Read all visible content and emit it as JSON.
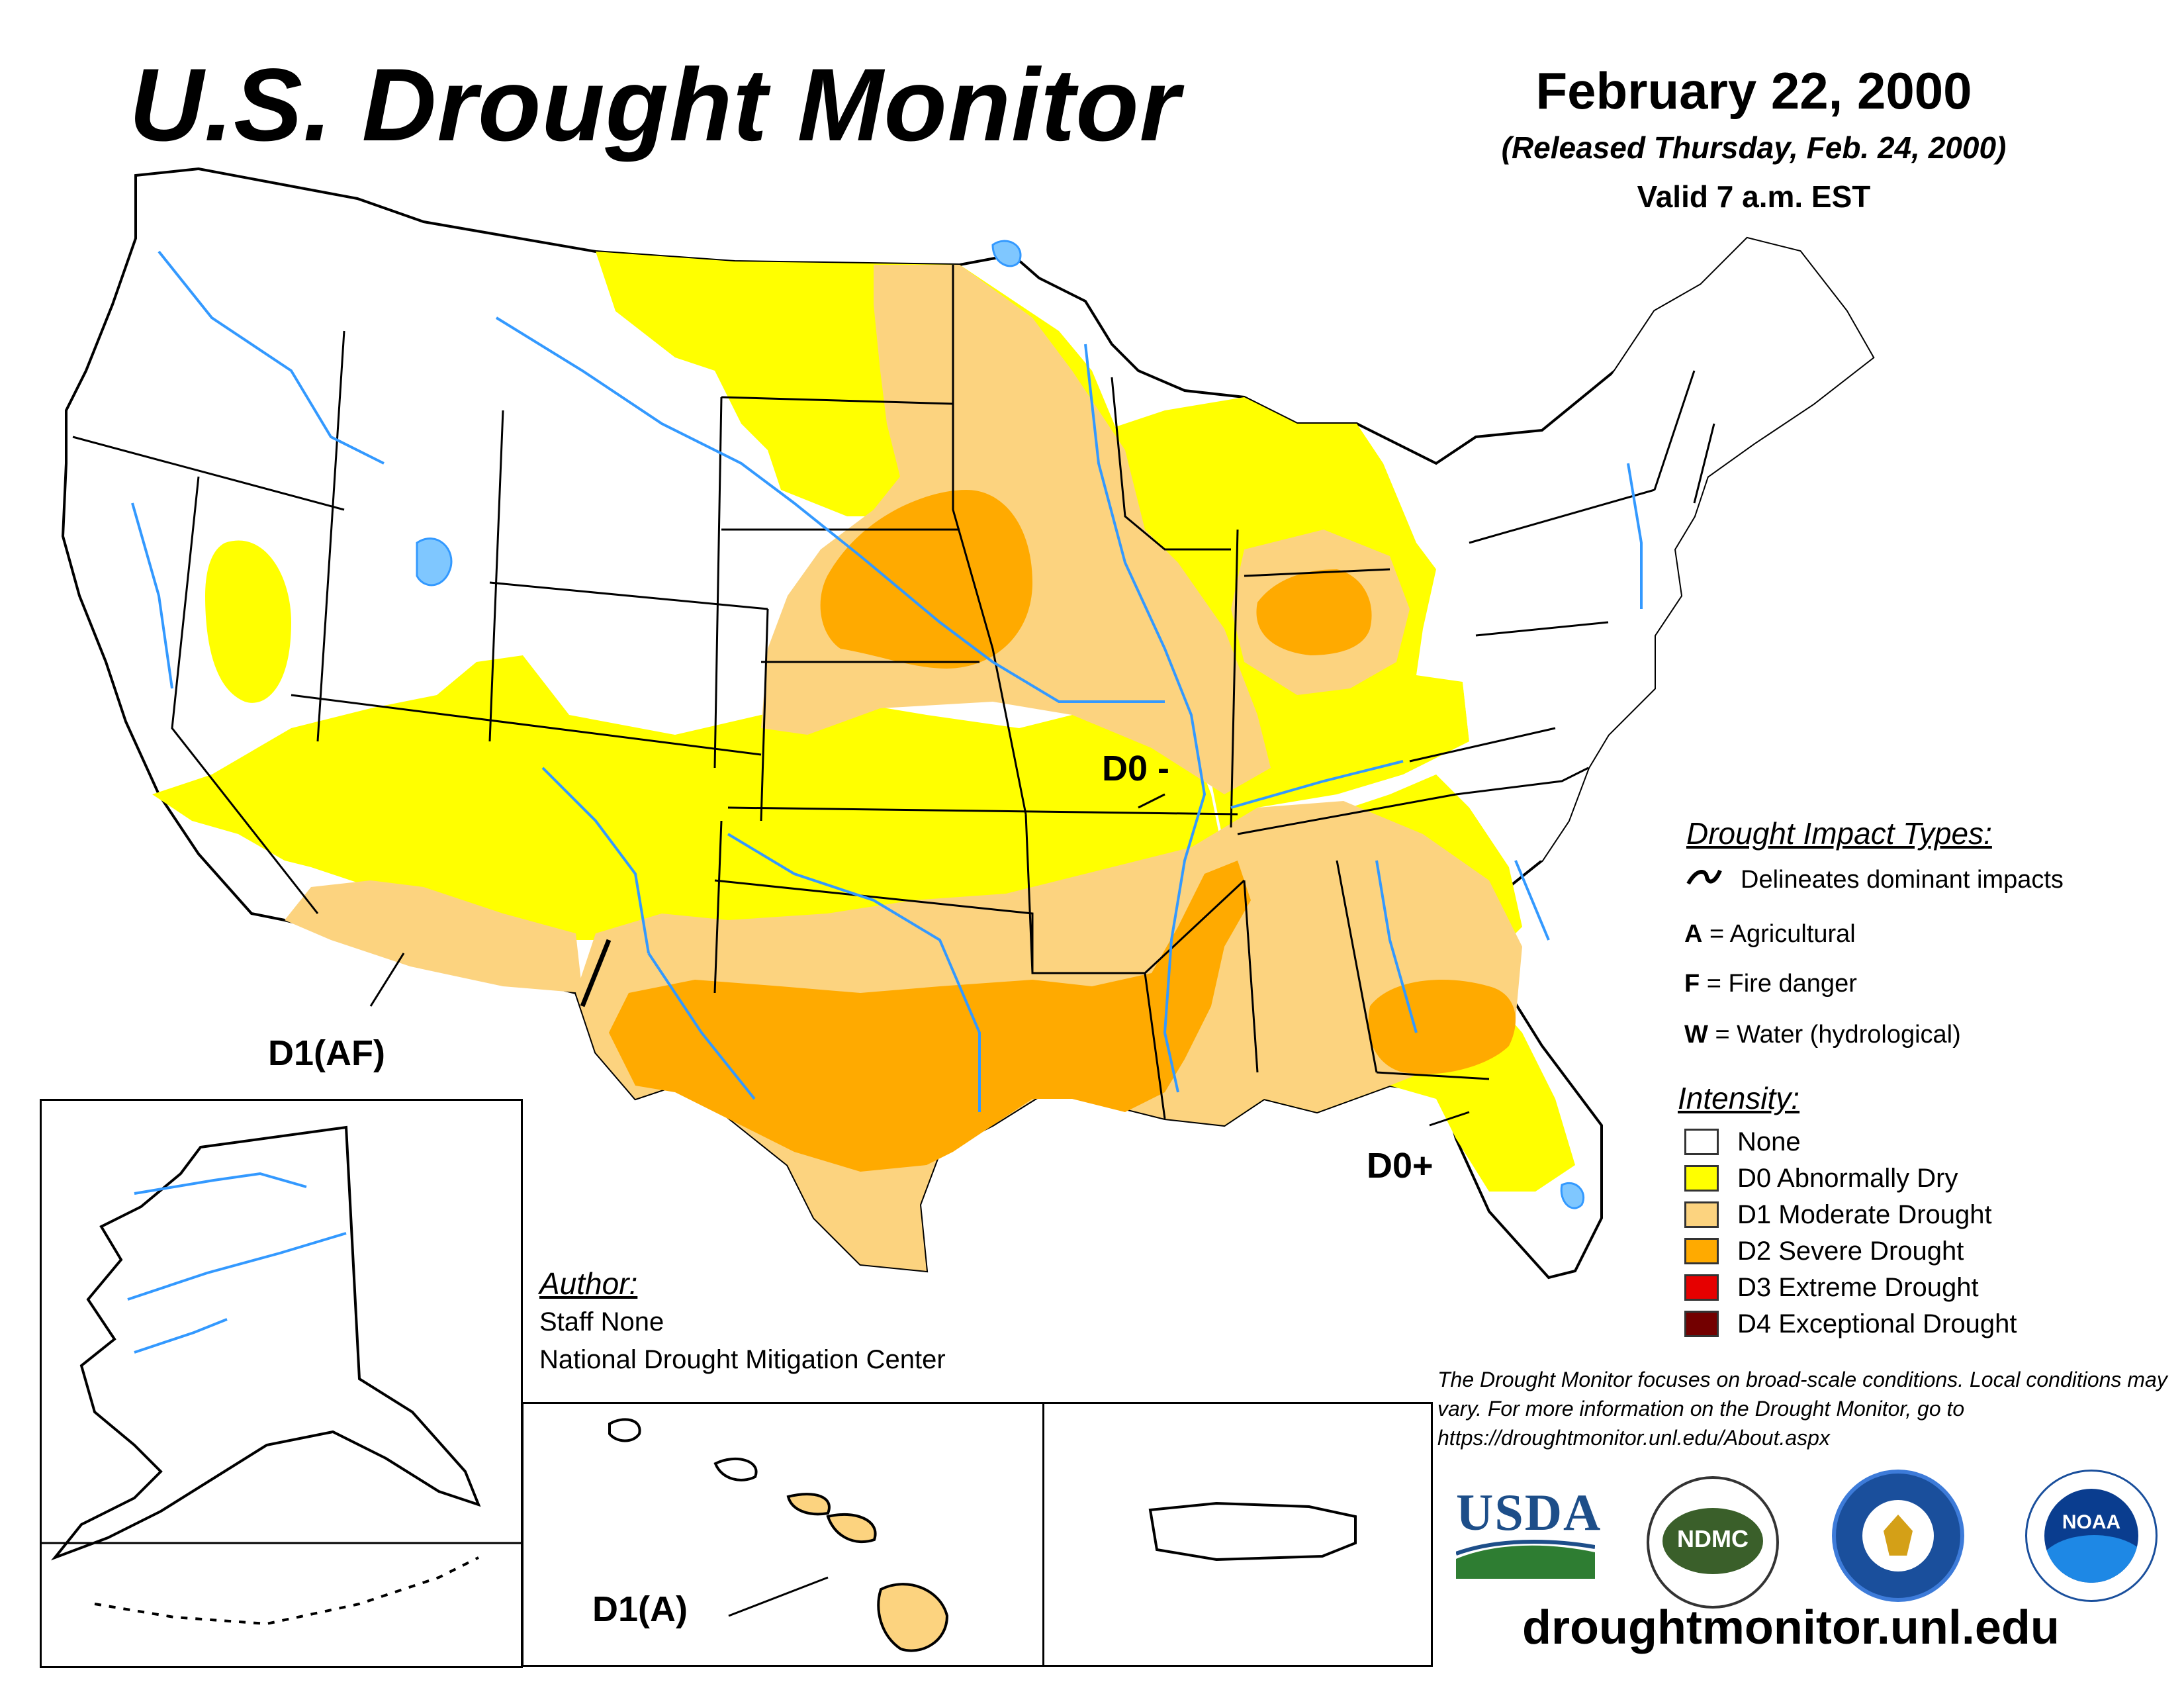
{
  "header": {
    "title": "U.S. Drought Monitor",
    "date": "February 22, 2000",
    "released": "(Released Thursday, Feb. 24, 2000)",
    "valid": "Valid 7 a.m. EST"
  },
  "map_labels": {
    "d0_minus": "D0 -",
    "d1_af": "D1(AF)",
    "d0_plus": "D0+",
    "d1_a": "D1(A)"
  },
  "legend": {
    "impact_heading": "Drought Impact Types:",
    "delineates": "Delineates dominant impacts",
    "impacts": [
      {
        "code": "A",
        "label": "= Agricultural"
      },
      {
        "code": "F",
        "label": "= Fire danger"
      },
      {
        "code": "W",
        "label": "= Water (hydrological)"
      }
    ],
    "intensity_heading": "Intensity:",
    "intensity": [
      {
        "label": "None",
        "color": "#ffffff"
      },
      {
        "label": "D0 Abnormally Dry",
        "color": "#ffff00"
      },
      {
        "label": "D1 Moderate Drought",
        "color": "#fcd37f"
      },
      {
        "label": "D2 Severe Drought",
        "color": "#ffaa00"
      },
      {
        "label": "D3 Extreme Drought",
        "color": "#e60000"
      },
      {
        "label": "D4 Exceptional Drought",
        "color": "#730000"
      }
    ]
  },
  "author": {
    "heading": "Author:",
    "name": "Staff None",
    "org": "National Drought Mitigation Center"
  },
  "footer": {
    "note": "The Drought Monitor focuses on broad-scale conditions. Local conditions may vary. For more information on the Drought Monitor, go to https://droughtmonitor.unl.edu/About.aspx",
    "url": "droughtmonitor.unl.edu"
  },
  "logos": {
    "usda": "USDA",
    "ndmc": "NDMC",
    "noaa": "NOAA"
  },
  "colors": {
    "water": "#3399ff",
    "lake": "#7fc7ff",
    "d0": "#ffff00",
    "d1": "#fcd37f",
    "d2": "#ffaa00"
  }
}
